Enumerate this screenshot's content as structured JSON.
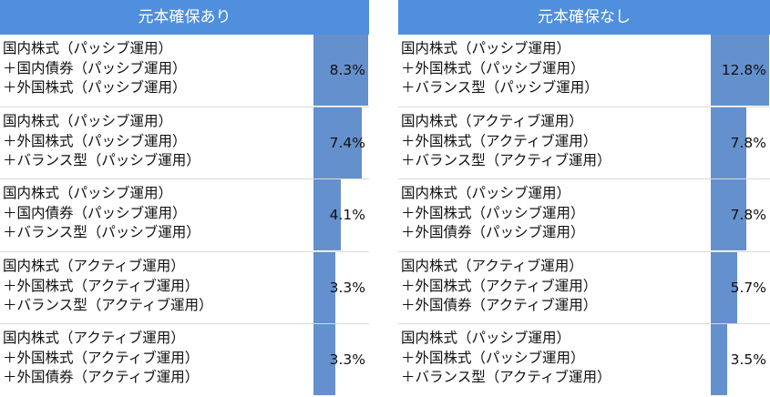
{
  "colors": {
    "header": "#4f8fdd",
    "bar": "#6490cd"
  },
  "chart_data": [
    {
      "type": "bar",
      "title": "元本確保あり",
      "unit": "%",
      "categories": [
        [
          "国内株式（パッシブ運用）",
          "＋国内債券（パッシブ運用）",
          "＋外国株式（パッシブ運用）"
        ],
        [
          "国内株式（パッシブ運用）",
          "＋外国株式（パッシブ運用）",
          "＋バランス型（パッシブ運用）"
        ],
        [
          "国内株式（パッシブ運用）",
          "＋国内債券（パッシブ運用）",
          "＋バランス型（パッシブ運用）"
        ],
        [
          "国内株式（アクティブ運用）",
          "＋外国株式（アクティブ運用）",
          "＋バランス型（アクティブ運用）"
        ],
        [
          "国内株式（アクティブ運用）",
          "＋外国株式（アクティブ運用）",
          "＋外国債券（アクティブ運用）"
        ]
      ],
      "values": [
        8.3,
        7.4,
        4.1,
        3.3,
        3.3
      ],
      "labels": [
        "8.3%",
        "7.4%",
        "4.1%",
        "3.3%",
        "3.3%"
      ]
    },
    {
      "type": "bar",
      "title": "元本確保なし",
      "unit": "%",
      "categories": [
        [
          "国内株式（パッシブ運用）",
          "＋外国株式（パッシブ運用）",
          "＋バランス型（パッシブ運用）"
        ],
        [
          "国内株式（アクティブ運用）",
          "＋外国株式（アクティブ運用）",
          "＋バランス型（アクティブ運用）"
        ],
        [
          "国内株式（パッシブ運用）",
          "＋外国株式（パッシブ運用）",
          "＋外国債券（パッシブ運用）"
        ],
        [
          "国内株式（アクティブ運用）",
          "＋外国株式（アクティブ運用）",
          "＋外国債券（アクティブ運用）"
        ],
        [
          "国内株式（パッシブ運用）",
          "＋外国株式（パッシブ運用）",
          "＋バランス型（アクティブ運用）"
        ]
      ],
      "values": [
        12.8,
        7.8,
        7.8,
        5.7,
        3.5
      ],
      "labels": [
        "12.8%",
        "7.8%",
        "7.8%",
        "5.7%",
        "3.5%"
      ]
    }
  ]
}
